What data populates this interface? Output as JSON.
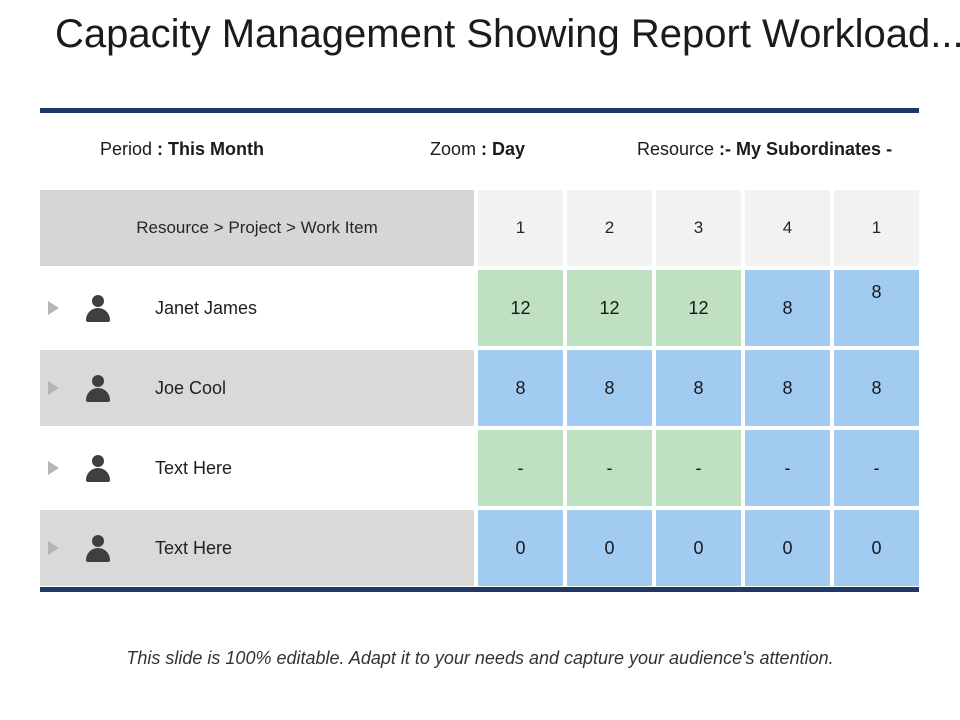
{
  "slide": {
    "title": "Capacity Management Showing Report Workload...",
    "footer": "This slide is 100% editable. Adapt it to your needs and capture your audience's attention."
  },
  "filters": [
    {
      "label": "Period",
      "sep": " : ",
      "value": "This Month"
    },
    {
      "label": "Zoom",
      "sep": " : ",
      "value": "Day"
    },
    {
      "label": "Resource",
      "sep": " :",
      "value": "- My Subordinates -"
    }
  ],
  "table": {
    "header": {
      "label": "Resource > Project > Work Item",
      "columns": [
        "1",
        "2",
        "3",
        "4",
        "1"
      ]
    },
    "rows": [
      {
        "name": "Janet James",
        "row_bg": "white",
        "values": [
          "12",
          "12",
          "12",
          "8",
          "8"
        ],
        "cell_colors": [
          "green",
          "green",
          "green",
          "blue",
          "blue"
        ]
      },
      {
        "name": "Joe Cool",
        "row_bg": "gray",
        "values": [
          "8",
          "8",
          "8",
          "8",
          "8"
        ],
        "cell_colors": [
          "blue",
          "blue",
          "blue",
          "blue",
          "blue"
        ]
      },
      {
        "name": "Text Here",
        "row_bg": "white",
        "values": [
          "-",
          "-",
          "-",
          "-",
          "-"
        ],
        "cell_colors": [
          "green",
          "green",
          "green",
          "blue",
          "blue"
        ]
      },
      {
        "name": "Text Here",
        "row_bg": "gray",
        "values": [
          "0",
          "0",
          "0",
          "0",
          "0"
        ],
        "cell_colors": [
          "blue",
          "blue",
          "blue",
          "blue",
          "blue"
        ]
      }
    ]
  },
  "colors": {
    "accent_line": "#1f3864",
    "cell_fill": {
      "green": "#bfe0c1",
      "blue": "#a1cbf1"
    },
    "row_fill": {
      "white": "#ffffff",
      "gray": "#d9d9d9"
    },
    "header_left_fill": "#d6d6d6",
    "header_col_fill": "#f2f2f2",
    "person_icon": "#3f3f3f",
    "expand_arrow": "#b5b5b5"
  },
  "icons": {
    "expand_arrow": "right-pointing-triangle",
    "person": "user-silhouette"
  }
}
